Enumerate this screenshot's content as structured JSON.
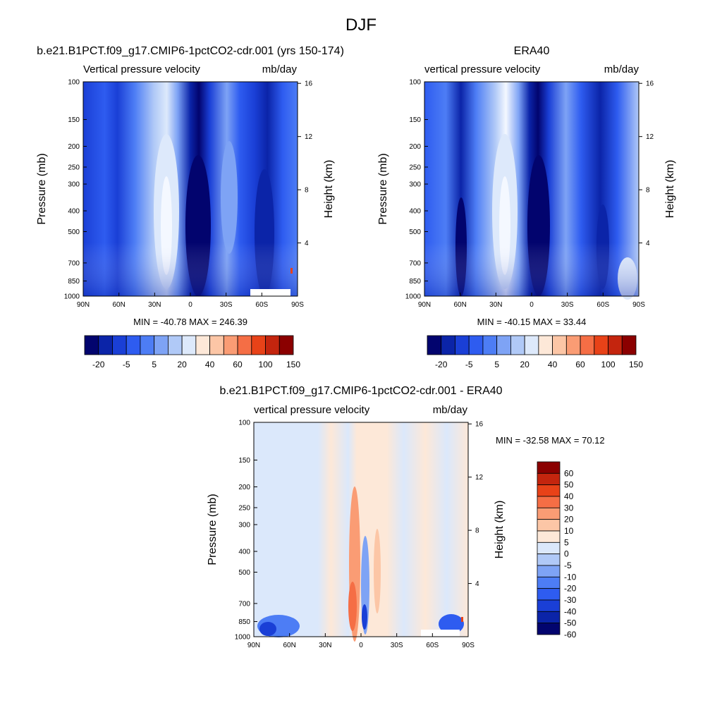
{
  "main_title": "DJF",
  "colors": {
    "seq_palette": [
      "#02046e",
      "#0b24a8",
      "#1a3fd6",
      "#2e5cf0",
      "#4d7df5",
      "#7ea3f5",
      "#b0c9f7",
      "#dde9fb",
      "#fde8d8",
      "#fcc6a6",
      "#fa9c74",
      "#f56e45",
      "#e84218",
      "#c4250e",
      "#8b0000"
    ],
    "diff_palette": [
      "#02046e",
      "#0b24a8",
      "#1a3fd6",
      "#2e5cf0",
      "#4d7df5",
      "#7ea3f5",
      "#b0c9f7",
      "#dbe8fb",
      "#fde8d8",
      "#fcc6a6",
      "#fa9c74",
      "#f56e45",
      "#e84218",
      "#c4250e",
      "#8b0000"
    ]
  },
  "chart_data": [
    {
      "type": "heatmap",
      "title": "b.e21.B1PCT.f09_g17.CMIP6-1pctCO2-cdr.001 (yrs 150-174)",
      "left_label": "Vertical pressure velocity",
      "right_label": "mb/day",
      "ylabel": "Pressure (mb)",
      "y2label": "Height (km)",
      "x_ticks": [
        "90N",
        "60N",
        "30N",
        "0",
        "30S",
        "60S",
        "90S"
      ],
      "y_ticks": [
        "100",
        "150",
        "200",
        "250",
        "300",
        "400",
        "500",
        "700",
        "850",
        "1000"
      ],
      "y2_ticks": [
        "16",
        "12",
        "8",
        "4"
      ],
      "stats": "MIN = -40.78  MAX = 246.39",
      "colorbar_labels": [
        "-20",
        "-5",
        "5",
        "20",
        "40",
        "60",
        "100",
        "150"
      ]
    },
    {
      "type": "heatmap",
      "title": "ERA40",
      "left_label": "vertical pressure velocity",
      "right_label": "mb/day",
      "ylabel": "Pressure (mb)",
      "y2label": "Height (km)",
      "x_ticks": [
        "90N",
        "60N",
        "30N",
        "0",
        "30S",
        "60S",
        "90S"
      ],
      "y_ticks": [
        "100",
        "150",
        "200",
        "250",
        "300",
        "400",
        "500",
        "700",
        "850",
        "1000"
      ],
      "y2_ticks": [
        "16",
        "12",
        "8",
        "4"
      ],
      "stats": "MIN = -40.15  MAX =  33.44",
      "colorbar_labels": [
        "-20",
        "-5",
        "5",
        "20",
        "40",
        "60",
        "100",
        "150"
      ]
    },
    {
      "type": "heatmap",
      "title": "b.e21.B1PCT.f09_g17.CMIP6-1pctCO2-cdr.001 - ERA40",
      "left_label": "vertical pressure velocity",
      "right_label": "mb/day",
      "ylabel": "Pressure (mb)",
      "y2label": "Height (km)",
      "x_ticks": [
        "90N",
        "60N",
        "30N",
        "0",
        "30S",
        "60S",
        "90S"
      ],
      "y_ticks": [
        "100",
        "150",
        "200",
        "250",
        "300",
        "400",
        "500",
        "700",
        "850",
        "1000"
      ],
      "y2_ticks": [
        "16",
        "12",
        "8",
        "4"
      ],
      "stats": "MIN = -32.58  MAX =  70.12",
      "colorbar_labels": [
        "60",
        "50",
        "40",
        "30",
        "20",
        "10",
        "5",
        "0",
        "-5",
        "-10",
        "-20",
        "-30",
        "-40",
        "-50",
        "-60"
      ]
    }
  ]
}
